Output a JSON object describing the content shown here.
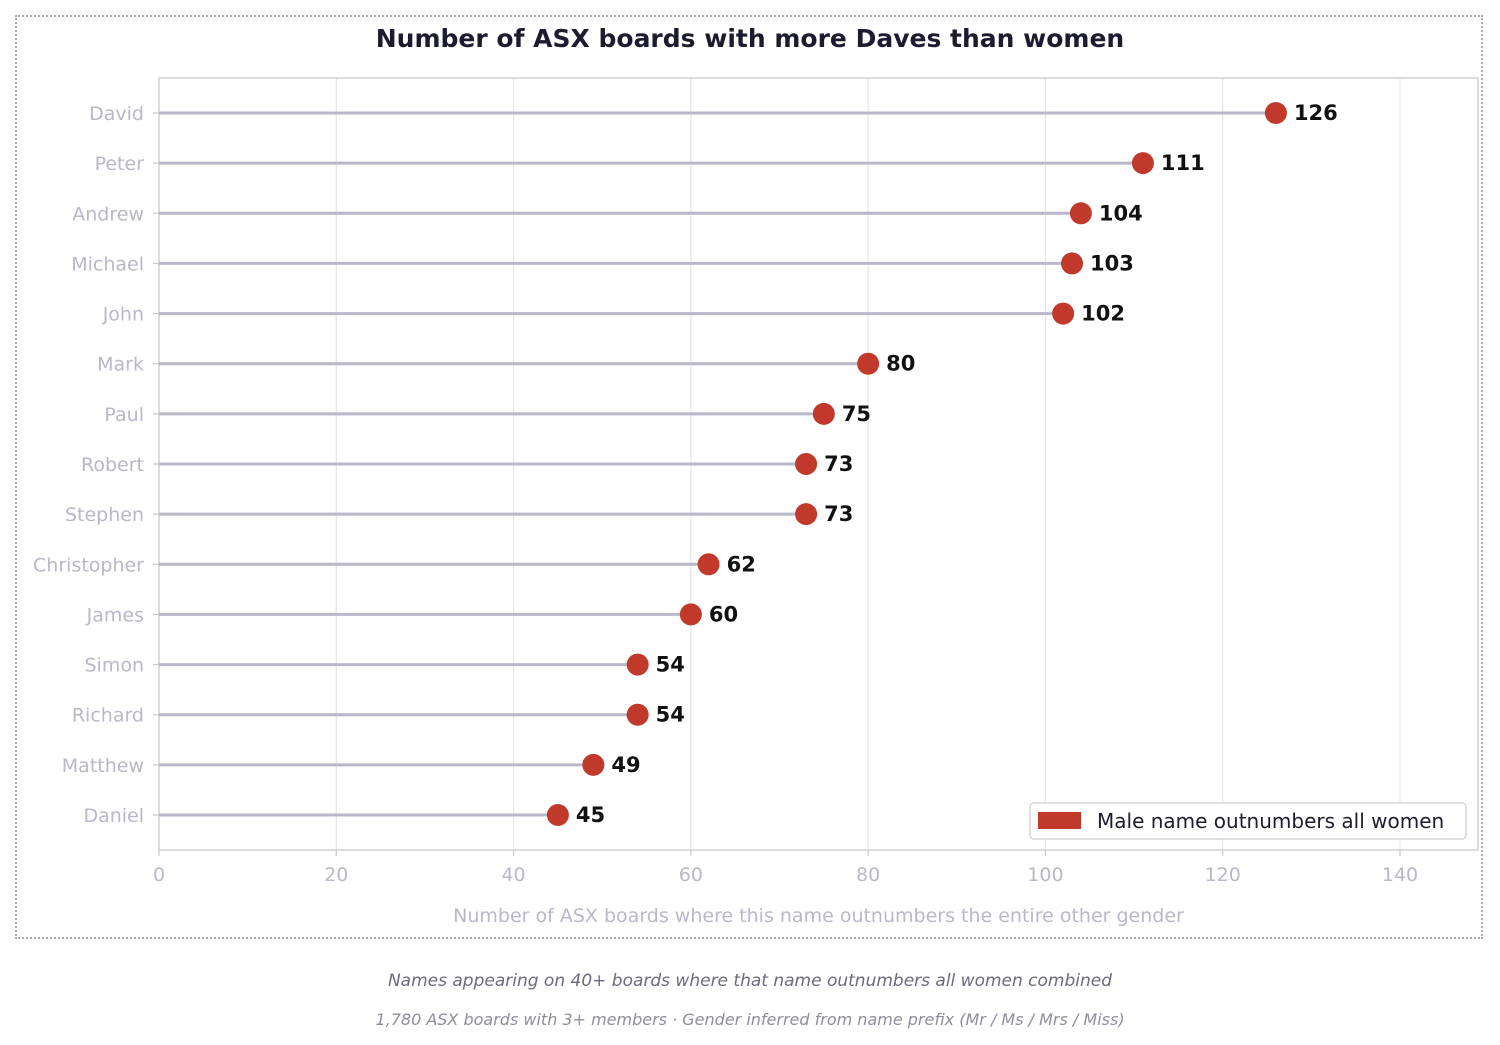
{
  "chart_data": {
    "type": "lollipop",
    "title": "Number of ASX boards with more Daves than women",
    "xlabel": "Number of ASX boards where this name outnumbers the entire other gender",
    "ylabel": "",
    "xlim": [
      0,
      148.8
    ],
    "xticks": [
      0,
      20,
      40,
      60,
      80,
      100,
      120,
      140
    ],
    "grid": "vertical",
    "legend": {
      "position": "lower right",
      "entries": [
        {
          "label": "Male name outnumbers all women",
          "color": "#c0392b"
        }
      ]
    },
    "categories": [
      "David",
      "Peter",
      "Andrew",
      "Michael",
      "John",
      "Mark",
      "Paul",
      "Robert",
      "Stephen",
      "Christopher",
      "James",
      "Simon",
      "Richard",
      "Matthew",
      "Daniel"
    ],
    "values": [
      126,
      111,
      104,
      103,
      102,
      80,
      75,
      73,
      73,
      62,
      60,
      54,
      54,
      49,
      45
    ],
    "colors": {
      "marker": "#c0392b",
      "stem": "#b8b8c8",
      "tick_label": "#b8b8c8",
      "value_label": "#111111"
    }
  },
  "footer": {
    "line1": "Names appearing on 40+ boards where that name outnumbers all women combined",
    "line2": "1,780 ASX boards with 3+ members  ·  Gender inferred from name prefix (Mr / Ms / Mrs / Miss)"
  }
}
